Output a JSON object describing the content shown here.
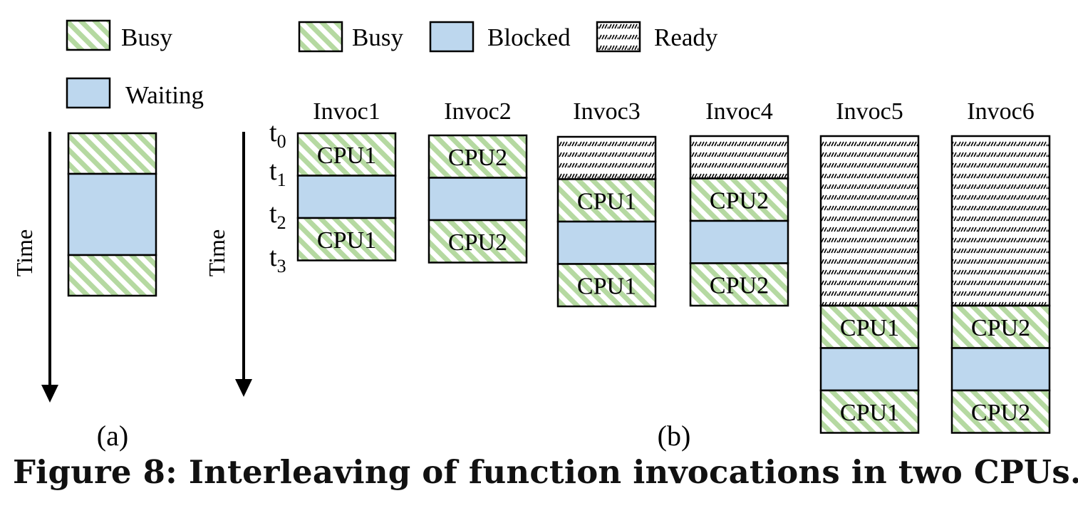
{
  "caption": "Figure 8: Interleaving of function invocations in two CPUs.",
  "colors": {
    "busy_stripe": "#b5d9a1",
    "busy_bg": "#ffffff",
    "blocked": "#bdd7ee",
    "ready_hatch": "#000000",
    "outline": "#000000"
  },
  "panel_a": {
    "label": "(a)",
    "time_label": "Time",
    "legend": [
      {
        "pattern": "busy",
        "label": "Busy"
      },
      {
        "pattern": "blocked",
        "label": "Waiting"
      }
    ],
    "column": {
      "segments": [
        {
          "state": "busy",
          "units": 1,
          "text": ""
        },
        {
          "state": "blocked",
          "units": 2,
          "text": ""
        },
        {
          "state": "busy",
          "units": 1,
          "text": ""
        }
      ]
    }
  },
  "panel_b": {
    "label": "(b)",
    "time_label": "Time",
    "legend": [
      {
        "pattern": "busy",
        "label": "Busy"
      },
      {
        "pattern": "blocked",
        "label": "Blocked"
      },
      {
        "pattern": "ready",
        "label": "Ready"
      }
    ],
    "time_ticks": [
      {
        "base": "t",
        "sub": "0"
      },
      {
        "base": "t",
        "sub": "1"
      },
      {
        "base": "t",
        "sub": "2"
      },
      {
        "base": "t",
        "sub": "3"
      }
    ],
    "invocations": [
      {
        "title": "Invoc1",
        "segments": [
          {
            "state": "busy",
            "units": 1,
            "text": "CPU1"
          },
          {
            "state": "blocked",
            "units": 1,
            "text": ""
          },
          {
            "state": "busy",
            "units": 1,
            "text": "CPU1"
          }
        ]
      },
      {
        "title": "Invoc2",
        "segments": [
          {
            "state": "busy",
            "units": 1,
            "text": "CPU2"
          },
          {
            "state": "blocked",
            "units": 1,
            "text": ""
          },
          {
            "state": "busy",
            "units": 1,
            "text": "CPU2"
          }
        ]
      },
      {
        "title": "Invoc3",
        "segments": [
          {
            "state": "ready",
            "units": 1,
            "text": ""
          },
          {
            "state": "busy",
            "units": 1,
            "text": "CPU1"
          },
          {
            "state": "blocked",
            "units": 1,
            "text": ""
          },
          {
            "state": "busy",
            "units": 1,
            "text": "CPU1"
          }
        ]
      },
      {
        "title": "Invoc4",
        "segments": [
          {
            "state": "ready",
            "units": 1,
            "text": ""
          },
          {
            "state": "busy",
            "units": 1,
            "text": "CPU2"
          },
          {
            "state": "blocked",
            "units": 1,
            "text": ""
          },
          {
            "state": "busy",
            "units": 1,
            "text": "CPU2"
          }
        ]
      },
      {
        "title": "Invoc5",
        "segments": [
          {
            "state": "ready",
            "units": 4,
            "text": ""
          },
          {
            "state": "busy",
            "units": 1,
            "text": "CPU1"
          },
          {
            "state": "blocked",
            "units": 1,
            "text": ""
          },
          {
            "state": "busy",
            "units": 1,
            "text": "CPU1"
          }
        ]
      },
      {
        "title": "Invoc6",
        "segments": [
          {
            "state": "ready",
            "units": 4,
            "text": ""
          },
          {
            "state": "busy",
            "units": 1,
            "text": "CPU2"
          },
          {
            "state": "blocked",
            "units": 1,
            "text": ""
          },
          {
            "state": "busy",
            "units": 1,
            "text": "CPU2"
          }
        ]
      }
    ]
  }
}
